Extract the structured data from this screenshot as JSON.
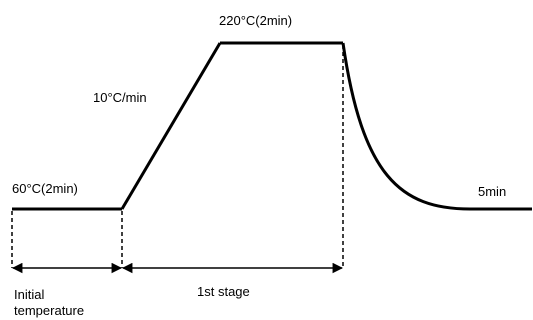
{
  "labels": {
    "hold_high": "220°C(2min)",
    "ramp_rate": "10°C/min",
    "hold_low": "60°C(2min)",
    "cool_time": "5min",
    "initial_line1": "Initial",
    "initial_line2": "temperature",
    "stage": "1st stage"
  },
  "profile": {
    "segments": [
      {
        "kind": "hold",
        "temperature_c": 60,
        "duration_min": 2
      },
      {
        "kind": "ramp",
        "rate_c_per_min": 10
      },
      {
        "kind": "hold",
        "temperature_c": 220,
        "duration_min": 2
      },
      {
        "kind": "cool",
        "duration_min": 5
      }
    ]
  },
  "colors": {
    "line": "#000000",
    "background": "#ffffff"
  }
}
